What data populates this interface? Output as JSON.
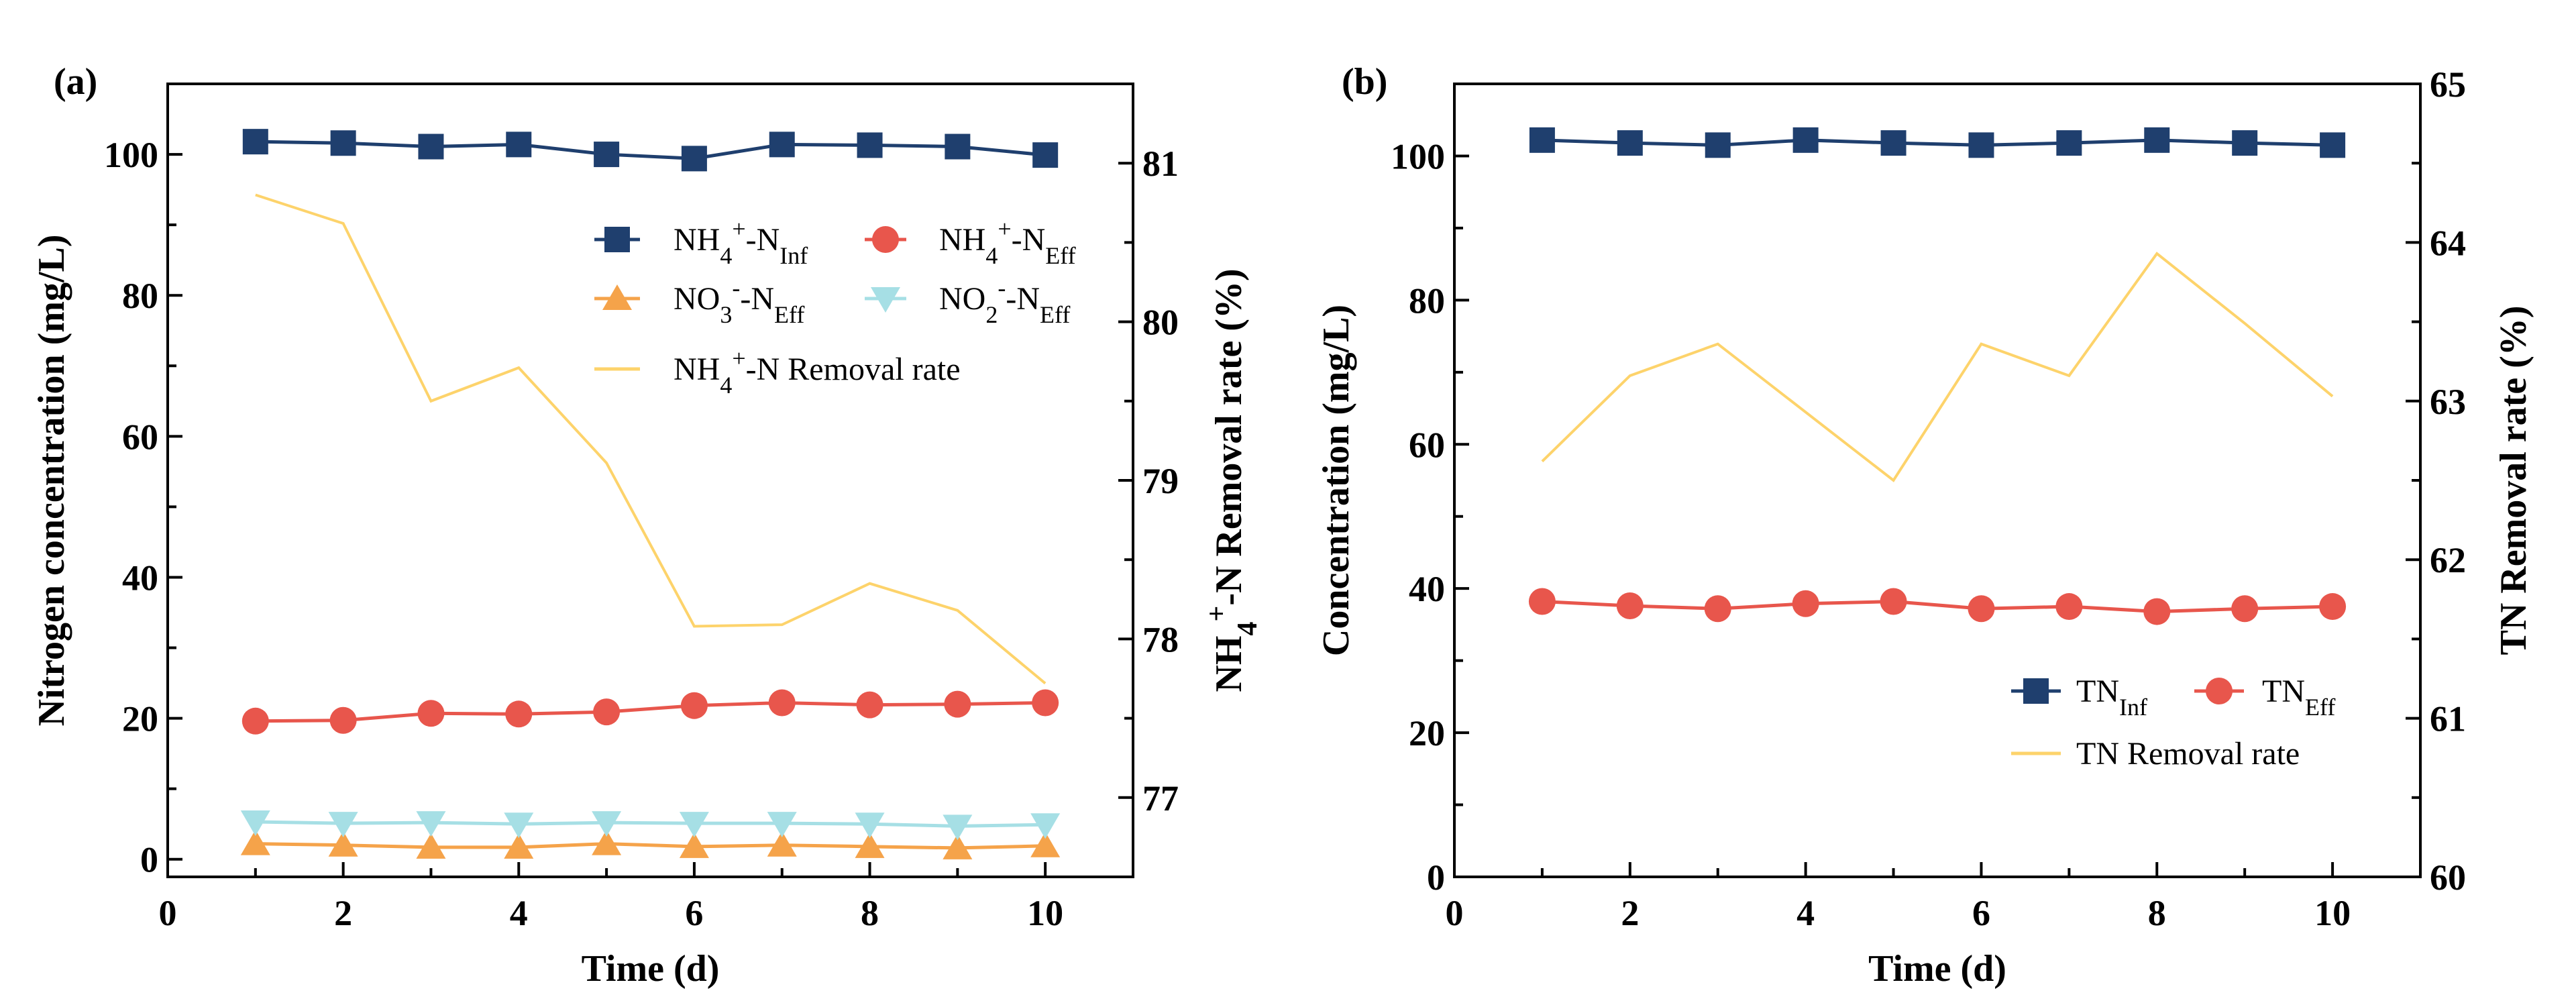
{
  "colors": {
    "inf": "#1f3f6e",
    "eff": "#e8564c",
    "no3": "#f5a34a",
    "no2": "#a6dfe5",
    "rate": "#fdd36b"
  },
  "chart_data": [
    {
      "panel_label": "(a)",
      "type": "line",
      "x": [
        1,
        2,
        3,
        4,
        5,
        6,
        7,
        8,
        9,
        10
      ],
      "xlabel": "Time (d)",
      "xlim": [
        0,
        11
      ],
      "xticks": [
        0,
        2,
        4,
        6,
        8,
        10
      ],
      "ylabel": "Nitrogen concentration (mg/L)",
      "ylim": [
        -2.5,
        110
      ],
      "yticks": [
        0,
        20,
        40,
        60,
        80,
        100
      ],
      "y2label": [
        [
          "NH",
          "n"
        ],
        [
          "4",
          "sub"
        ],
        [
          "+",
          "sup"
        ],
        [
          "-N Removal rate (%)",
          "n"
        ]
      ],
      "y2lim": [
        76.5,
        81.5
      ],
      "y2ticks": [
        77,
        78,
        79,
        80,
        81
      ],
      "legend_position": "upper-right",
      "series": [
        {
          "name": "NH4+-N Inf",
          "label": [
            [
              "NH",
              "n"
            ],
            [
              "4",
              "sub"
            ],
            [
              "+",
              "sup"
            ],
            [
              "-N",
              "n"
            ],
            [
              "Inf",
              "sub"
            ]
          ],
          "axis": "left",
          "marker": "square",
          "color_key": "inf",
          "values": [
            101.8,
            101.6,
            101.1,
            101.4,
            100.0,
            99.4,
            101.4,
            101.3,
            101.1,
            99.9
          ]
        },
        {
          "name": "NH4+-N Eff",
          "label": [
            [
              "NH",
              "n"
            ],
            [
              "4",
              "sub"
            ],
            [
              "+",
              "sup"
            ],
            [
              "-N",
              "n"
            ],
            [
              "Eff",
              "sub"
            ]
          ],
          "axis": "left",
          "marker": "circle",
          "color_key": "eff",
          "values": [
            19.6,
            19.7,
            20.7,
            20.6,
            20.9,
            21.8,
            22.2,
            21.9,
            22.0,
            22.2
          ]
        },
        {
          "name": "NO3--N Eff",
          "label": [
            [
              "NO",
              "n"
            ],
            [
              "3",
              "sub"
            ],
            [
              "-",
              "sup"
            ],
            [
              "-N",
              "n"
            ],
            [
              "Eff",
              "sub"
            ]
          ],
          "axis": "left",
          "marker": "triangle-up",
          "color_key": "no3",
          "values": [
            2.2,
            2.0,
            1.7,
            1.7,
            2.2,
            1.8,
            2.0,
            1.8,
            1.6,
            1.9
          ]
        },
        {
          "name": "NO2--N Eff",
          "label": [
            [
              "NO",
              "n"
            ],
            [
              "2",
              "sub"
            ],
            [
              "-",
              "sup"
            ],
            [
              "-N",
              "n"
            ],
            [
              "Eff",
              "sub"
            ]
          ],
          "axis": "left",
          "marker": "triangle-down",
          "color_key": "no2",
          "values": [
            5.3,
            5.1,
            5.2,
            5.0,
            5.2,
            5.1,
            5.1,
            5.0,
            4.7,
            4.9
          ]
        },
        {
          "name": "NH4+-N Removal rate",
          "label": [
            [
              "NH",
              "n"
            ],
            [
              "4",
              "sub"
            ],
            [
              "+",
              "sup"
            ],
            [
              "-N  Removal rate",
              "n"
            ]
          ],
          "axis": "right",
          "marker": "none",
          "color_key": "rate",
          "values": [
            80.8,
            80.62,
            79.5,
            79.71,
            79.11,
            78.08,
            78.09,
            78.35,
            78.18,
            77.72
          ]
        }
      ]
    },
    {
      "panel_label": "(b)",
      "type": "line",
      "x": [
        1,
        2,
        3,
        4,
        5,
        6,
        7,
        8,
        9,
        10
      ],
      "xlabel": "Time (d)",
      "xlim": [
        0,
        11
      ],
      "xticks": [
        0,
        2,
        4,
        6,
        8,
        10
      ],
      "ylabel": "Concentration (mg/L)",
      "ylim": [
        0,
        110
      ],
      "yticks": [
        0,
        20,
        40,
        60,
        80,
        100
      ],
      "y2label": [
        [
          "TN Removal rate (%)",
          "n"
        ]
      ],
      "y2lim": [
        60,
        65
      ],
      "y2ticks": [
        60,
        61,
        62,
        63,
        64,
        65
      ],
      "legend_position": "lower-right",
      "series": [
        {
          "name": "TN Inf",
          "label": [
            [
              "TN",
              "n"
            ],
            [
              "Inf",
              "sub"
            ]
          ],
          "axis": "left",
          "marker": "square",
          "color_key": "inf",
          "values": [
            102.2,
            101.8,
            101.5,
            102.2,
            101.8,
            101.5,
            101.8,
            102.2,
            101.8,
            101.5
          ]
        },
        {
          "name": "TN Eff",
          "label": [
            [
              "TN",
              "n"
            ],
            [
              "Eff",
              "sub"
            ]
          ],
          "axis": "left",
          "marker": "circle",
          "color_key": "eff",
          "values": [
            38.2,
            37.6,
            37.2,
            37.9,
            38.2,
            37.2,
            37.5,
            36.8,
            37.2,
            37.5
          ]
        },
        {
          "name": "TN Removal rate",
          "label": [
            [
              "TN Removal rate",
              "n"
            ]
          ],
          "axis": "right",
          "marker": "none",
          "color_key": "rate",
          "values": [
            62.62,
            63.16,
            63.36,
            62.93,
            62.5,
            63.36,
            63.16,
            63.93,
            63.49,
            63.03
          ]
        }
      ]
    }
  ]
}
